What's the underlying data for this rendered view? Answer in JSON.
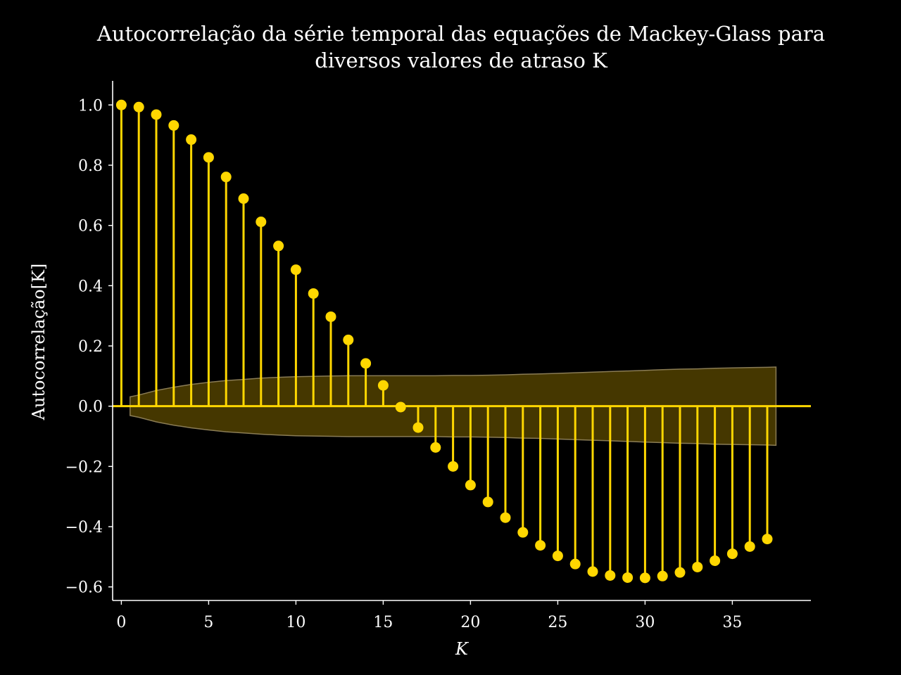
{
  "chart_data": {
    "type": "stem",
    "title_line1": "Autocorrelação da série temporal das equações de Mackey-Glass para",
    "title_line2": "diversos valores de atraso K",
    "xlabel": "K",
    "ylabel": "Autocorrelação[K]",
    "xlim": [
      -0.5,
      39.5
    ],
    "ylim": [
      -0.645,
      1.08
    ],
    "x_ticks": [
      0,
      5,
      10,
      15,
      20,
      25,
      30,
      35
    ],
    "x_tick_labels": [
      "0",
      "5",
      "10",
      "15",
      "20",
      "25",
      "30",
      "35"
    ],
    "y_ticks": [
      1.0,
      0.8,
      0.6,
      0.4,
      0.2,
      0.0,
      -0.2,
      -0.4,
      -0.6
    ],
    "y_tick_labels": [
      "1.0",
      "0.8",
      "0.6",
      "0.4",
      "0.2",
      "0.0",
      "−0.2",
      "−0.4",
      "−0.6"
    ],
    "color": "#ffd700",
    "band_color": "#5c4a00",
    "grid": false,
    "x": [
      0,
      1,
      2,
      3,
      4,
      5,
      6,
      7,
      8,
      9,
      10,
      11,
      12,
      13,
      14,
      15,
      16,
      17,
      18,
      19,
      20,
      21,
      22,
      23,
      24,
      25,
      26,
      27,
      28,
      29,
      30,
      31,
      32,
      33,
      34,
      35,
      36,
      37
    ],
    "values": [
      1.0,
      0.993,
      0.968,
      0.932,
      0.885,
      0.826,
      0.761,
      0.689,
      0.612,
      0.532,
      0.453,
      0.374,
      0.297,
      0.22,
      0.142,
      0.069,
      -0.003,
      -0.071,
      -0.137,
      -0.2,
      -0.262,
      -0.318,
      -0.37,
      -0.419,
      -0.462,
      -0.497,
      -0.524,
      -0.549,
      -0.562,
      -0.569,
      -0.57,
      -0.564,
      -0.552,
      -0.534,
      -0.513,
      -0.49,
      -0.466,
      -0.441
    ],
    "confidence_band": {
      "x": [
        0.5,
        1,
        2,
        3,
        4,
        5,
        6,
        7,
        8,
        9,
        10,
        11,
        12,
        13,
        14,
        15,
        16,
        17,
        18,
        19,
        20,
        21,
        22,
        23,
        24,
        25,
        26,
        27,
        28,
        29,
        30,
        31,
        32,
        33,
        34,
        35,
        36,
        37,
        37.5
      ],
      "upper": [
        0.031,
        0.037,
        0.052,
        0.063,
        0.072,
        0.079,
        0.085,
        0.089,
        0.093,
        0.096,
        0.098,
        0.099,
        0.1,
        0.101,
        0.101,
        0.101,
        0.101,
        0.101,
        0.101,
        0.102,
        0.102,
        0.103,
        0.104,
        0.106,
        0.107,
        0.109,
        0.111,
        0.113,
        0.115,
        0.117,
        0.119,
        0.121,
        0.123,
        0.124,
        0.126,
        0.127,
        0.128,
        0.129,
        0.13
      ]
    }
  }
}
